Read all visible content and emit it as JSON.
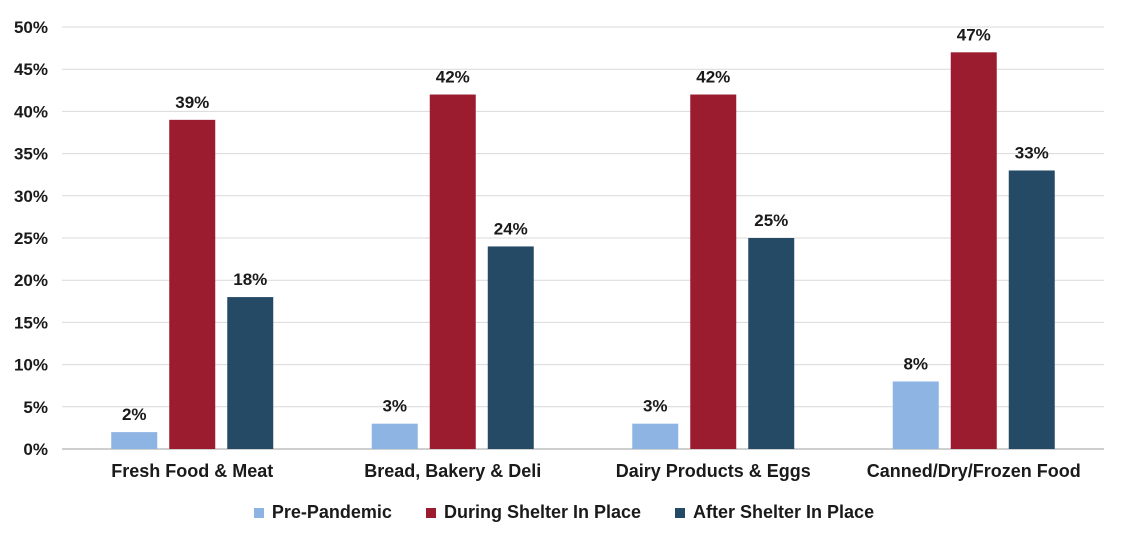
{
  "chart_data": {
    "type": "bar",
    "categories": [
      "Fresh Food & Meat",
      "Bread, Bakery & Deli",
      "Dairy Products & Eggs",
      "Canned/Dry/Frozen Food"
    ],
    "series": [
      {
        "name": "Pre-Pandemic",
        "values": [
          2,
          3,
          3,
          8
        ],
        "labels": [
          "2%",
          "3%",
          "3%",
          "8%"
        ],
        "color": "#8db4e2"
      },
      {
        "name": "During Shelter In Place",
        "values": [
          39,
          42,
          42,
          47
        ],
        "labels": [
          "39%",
          "42%",
          "42%",
          "47%"
        ],
        "color": "#9b1c2e"
      },
      {
        "name": "After Shelter In Place",
        "values": [
          18,
          24,
          25,
          33
        ],
        "labels": [
          "18%",
          "24%",
          "25%",
          "33%"
        ],
        "color": "#244a66"
      }
    ],
    "yticks": [
      "0%",
      "5%",
      "10%",
      "15%",
      "20%",
      "25%",
      "30%",
      "35%",
      "40%",
      "45%",
      "50%"
    ],
    "ylim": [
      0,
      50
    ],
    "grid": true,
    "legend_position": "bottom"
  }
}
